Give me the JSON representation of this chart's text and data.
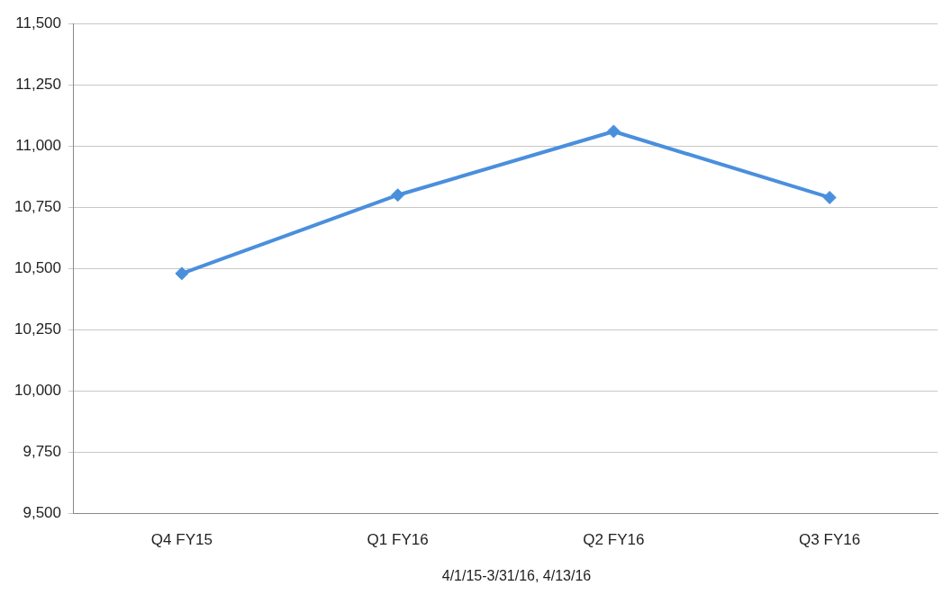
{
  "chart_data": {
    "type": "line",
    "categories": [
      "Q4 FY15",
      "Q1 FY16",
      "Q2 FY16",
      "Q3 FY16"
    ],
    "series": [
      {
        "color": "#4a8fdd",
        "values": [
          10480,
          10800,
          11060,
          10790
        ]
      }
    ],
    "ylim": [
      9500,
      11500
    ],
    "yticks": [
      {
        "value": 9500,
        "label": "9,500"
      },
      {
        "value": 9750,
        "label": "9,750"
      },
      {
        "value": 10000,
        "label": "10,000"
      },
      {
        "value": 10250,
        "label": "10,250"
      },
      {
        "value": 10500,
        "label": "10,500"
      },
      {
        "value": 10750,
        "label": "10,750"
      },
      {
        "value": 11000,
        "label": "11,000"
      },
      {
        "value": 11250,
        "label": "11,250"
      },
      {
        "value": 11500,
        "label": "11,500"
      }
    ],
    "grid": "y",
    "legend": false,
    "marker": "diamond",
    "line_style": "solid",
    "annotations": [
      "4/1/15-3/31/16, 4/13/16"
    ]
  }
}
